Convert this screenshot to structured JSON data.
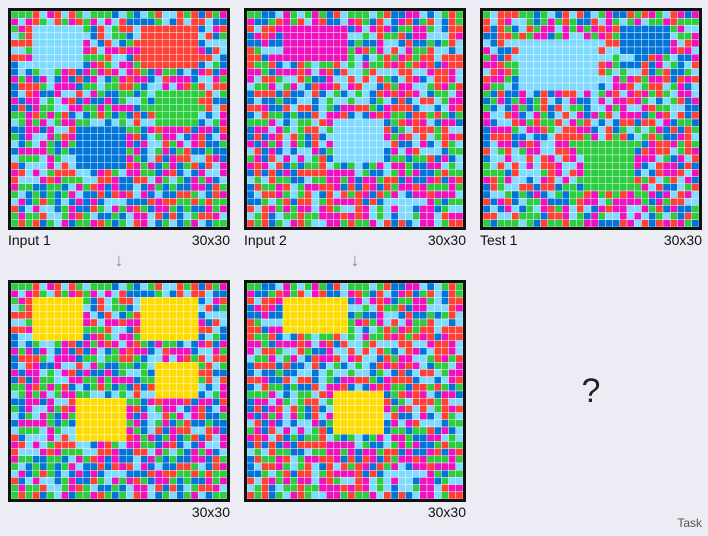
{
  "palette": {
    "red": "#ff4136",
    "green": "#2ecc40",
    "blue": "#0074d9",
    "cyan": "#7fdbff",
    "magenta": "#f012be",
    "yellow": "#ffdc00",
    "grid_line": "#ffffff"
  },
  "noise_colors": [
    "red",
    "green",
    "blue",
    "cyan",
    "magenta"
  ],
  "grid_size": 30,
  "panels": [
    {
      "id": "input-1",
      "label": "Input 1",
      "size_label": "30x30",
      "seed": 11,
      "rects": [
        {
          "r0": 2,
          "c0": 3,
          "r1": 7,
          "c1": 9,
          "color": "cyan"
        },
        {
          "r0": 2,
          "c0": 18,
          "r1": 7,
          "c1": 25,
          "color": "red"
        },
        {
          "r0": 11,
          "c0": 20,
          "r1": 15,
          "c1": 25,
          "color": "green"
        },
        {
          "r0": 16,
          "c0": 9,
          "r1": 21,
          "c1": 15,
          "color": "blue"
        }
      ]
    },
    {
      "id": "output-1",
      "label": "",
      "size_label": "30x30",
      "seed": 11,
      "rects": [
        {
          "r0": 2,
          "c0": 3,
          "r1": 7,
          "c1": 9,
          "color": "yellow"
        },
        {
          "r0": 2,
          "c0": 18,
          "r1": 7,
          "c1": 25,
          "color": "yellow"
        },
        {
          "r0": 11,
          "c0": 20,
          "r1": 15,
          "c1": 25,
          "color": "yellow"
        },
        {
          "r0": 16,
          "c0": 9,
          "r1": 21,
          "c1": 15,
          "color": "yellow"
        }
      ]
    },
    {
      "id": "input-2",
      "label": "Input 2",
      "size_label": "30x30",
      "seed": 23,
      "rects": [
        {
          "r0": 2,
          "c0": 5,
          "r1": 6,
          "c1": 13,
          "color": "magenta"
        },
        {
          "r0": 15,
          "c0": 12,
          "r1": 20,
          "c1": 18,
          "color": "cyan"
        }
      ]
    },
    {
      "id": "output-2",
      "label": "",
      "size_label": "30x30",
      "seed": 23,
      "rects": [
        {
          "r0": 2,
          "c0": 5,
          "r1": 6,
          "c1": 13,
          "color": "yellow"
        },
        {
          "r0": 15,
          "c0": 12,
          "r1": 20,
          "c1": 18,
          "color": "yellow"
        }
      ]
    },
    {
      "id": "test-1",
      "label": "Test 1",
      "size_label": "30x30",
      "seed": 37,
      "rects": [
        {
          "r0": 4,
          "c0": 5,
          "r1": 10,
          "c1": 15,
          "color": "cyan"
        },
        {
          "r0": 2,
          "c0": 19,
          "r1": 5,
          "c1": 25,
          "color": "blue"
        },
        {
          "r0": 18,
          "c0": 14,
          "r1": 24,
          "c1": 20,
          "color": "green"
        }
      ]
    }
  ],
  "unknown_symbol": "?",
  "footer_label": "Task"
}
